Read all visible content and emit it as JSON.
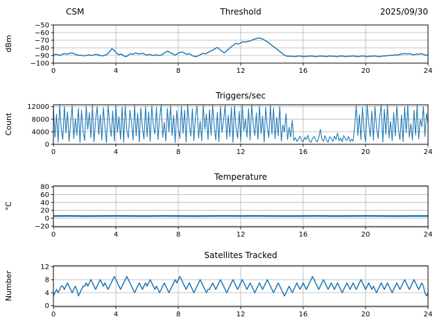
{
  "colors": {
    "line": "#1f77b4",
    "grid": "#b0b0b0",
    "axis": "#000000",
    "text": "#000000"
  },
  "chart_data": [
    {
      "name": "threshold",
      "type": "line",
      "title": "Threshold",
      "title_left": "CSM",
      "title_right": "2025/09/30",
      "ylabel": "dBm",
      "xlim": [
        0,
        24
      ],
      "ylim": [
        -100,
        -50
      ],
      "grid": true,
      "line_width": 1.5,
      "yticks": [
        {
          "v": -50,
          "label": "−50"
        },
        {
          "v": -60,
          "label": "−60"
        },
        {
          "v": -70,
          "label": "−70"
        },
        {
          "v": -80,
          "label": "−80"
        },
        {
          "v": -90,
          "label": "−90"
        },
        {
          "v": -100,
          "label": "−100"
        }
      ],
      "xticks": [
        {
          "v": 0,
          "label": "0"
        },
        {
          "v": 4,
          "label": "4"
        },
        {
          "v": 8,
          "label": "8"
        },
        {
          "v": 12,
          "label": "12"
        },
        {
          "v": 16,
          "label": "16"
        },
        {
          "v": 20,
          "label": "20"
        },
        {
          "v": 24,
          "label": "24"
        }
      ],
      "x_start": 0,
      "x_step": 0.15,
      "values": [
        -89.5,
        -88.5,
        -89,
        -90,
        -88,
        -87.5,
        -88.5,
        -87,
        -86.5,
        -88,
        -89,
        -90,
        -89.5,
        -90.5,
        -90,
        -89,
        -90,
        -89.5,
        -88.5,
        -89,
        -90,
        -90.5,
        -89.5,
        -88.5,
        -85,
        -81,
        -83.5,
        -87,
        -89,
        -88,
        -90.5,
        -91.5,
        -89.5,
        -87.5,
        -88.5,
        -86.5,
        -87.5,
        -88,
        -87,
        -88.5,
        -89.5,
        -88.5,
        -89.5,
        -90,
        -89,
        -90,
        -89.5,
        -87.5,
        -85.5,
        -84.5,
        -86.5,
        -88,
        -89.5,
        -87.5,
        -86,
        -85.5,
        -87,
        -88.5,
        -87.5,
        -89.5,
        -91,
        -91.5,
        -90,
        -88.5,
        -87,
        -88,
        -86,
        -84.5,
        -83,
        -81,
        -79.5,
        -82,
        -84.5,
        -86.5,
        -84,
        -81,
        -78.5,
        -76,
        -74,
        -75,
        -73.5,
        -72,
        -72.5,
        -71.5,
        -71,
        -69.5,
        -68.5,
        -67.5,
        -67,
        -68,
        -69.5,
        -71.5,
        -73.5,
        -76,
        -78.5,
        -80.5,
        -83,
        -85.5,
        -88,
        -90,
        -91,
        -91,
        -91,
        -91.5,
        -91,
        -90.5,
        -91,
        -91.5,
        -91,
        -91,
        -90.5,
        -91,
        -91.5,
        -91,
        -90.5,
        -91,
        -91,
        -91.5,
        -90.5,
        -91,
        -91,
        -91.5,
        -91,
        -90.5,
        -91,
        -91.5,
        -91,
        -91,
        -90.5,
        -91,
        -91.5,
        -91,
        -90.5,
        -91,
        -91.5,
        -91,
        -91,
        -90.5,
        -91,
        -91.5,
        -91,
        -90.5,
        -90.5,
        -90,
        -89.5,
        -90,
        -89,
        -89.5,
        -88.5,
        -88,
        -87.5,
        -88,
        -87.5,
        -88.5,
        -89,
        -88,
        -88.5,
        -87.5,
        -88.5,
        -89.5,
        -89.5
      ]
    },
    {
      "name": "triggers",
      "type": "line",
      "title": "Triggers/sec",
      "ylabel": "Count",
      "xlim": [
        0,
        24
      ],
      "ylim": [
        0,
        12600
      ],
      "grid": true,
      "line_width": 1.1,
      "yticks": [
        {
          "v": 12000,
          "label": "12000"
        },
        {
          "v": 8000,
          "label": "8000"
        },
        {
          "v": 4000,
          "label": "4000"
        },
        {
          "v": 0,
          "label": "0"
        }
      ],
      "xticks": [
        {
          "v": 0,
          "label": "0"
        },
        {
          "v": 4,
          "label": "4"
        },
        {
          "v": 8,
          "label": "8"
        },
        {
          "v": 12,
          "label": "12"
        },
        {
          "v": 16,
          "label": "16"
        },
        {
          "v": 20,
          "label": "20"
        },
        {
          "v": 24,
          "label": "24"
        }
      ],
      "x_start": 0,
      "x_step": 0.1,
      "values": [
        11800,
        2300,
        9600,
        700,
        12400,
        5100,
        1500,
        12100,
        3600,
        10400,
        900,
        6900,
        12300,
        1800,
        8200,
        2900,
        11500,
        600,
        10900,
        4200,
        1200,
        12200,
        4800,
        10100,
        2100,
        12450,
        800,
        7600,
        12000,
        3100,
        9400,
        1400,
        11700,
        5600,
        500,
        12300,
        6800,
        2500,
        10600,
        1100,
        12400,
        3900,
        8800,
        1600,
        11900,
        600,
        12200,
        4500,
        2000,
        10800,
        7200,
        1300,
        12350,
        2700,
        9900,
        800,
        11600,
        5300,
        1700,
        12100,
        2400,
        10300,
        900,
        12250,
        6100,
        3300,
        11800,
        1500,
        8500,
        12400,
        2200,
        7000,
        1000,
        11500,
        4000,
        12300,
        2800,
        9200,
        600,
        10700,
        5000,
        1900,
        12150,
        3500,
        10900,
        700,
        12400,
        6400,
        2600,
        11300,
        1200,
        8900,
        12200,
        2000,
        7400,
        1100,
        12350,
        4700,
        9700,
        1500,
        11000,
        2900,
        12400,
        5800,
        1400,
        10200,
        800,
        12100,
        3800,
        7800,
        12300,
        1700,
        9300,
        2500,
        11700,
        600,
        12200,
        5100,
        1900,
        10500,
        900,
        12350,
        4300,
        8100,
        2300,
        11400,
        1300,
        12450,
        6600,
        2800,
        10000,
        1600,
        12200,
        3400,
        9000,
        700,
        11800,
        5500,
        2100,
        12400,
        3200,
        11600,
        1800,
        8600,
        2700,
        12100,
        1000,
        6200,
        3900,
        9800,
        1500,
        5400,
        2300,
        7600,
        1200,
        2100,
        900,
        1700,
        2600,
        1200,
        800,
        2300,
        1500,
        2900,
        1100,
        600,
        1900,
        2500,
        1400,
        800,
        2200,
        4800,
        1600,
        1000,
        2700,
        1300,
        700,
        2400,
        1800,
        900,
        2600,
        1500,
        3600,
        1100,
        2000,
        800,
        2800,
        1700,
        1200,
        2500,
        900,
        1600,
        1000,
        6000,
        12300,
        2800,
        9500,
        1500,
        11800,
        4200,
        800,
        12400,
        6700,
        2400,
        10600,
        1300,
        12100,
        5200,
        1900,
        8800,
        12350,
        700,
        11200,
        3100,
        12450,
        2000,
        7300,
        1100,
        10100,
        2600,
        12200,
        4600,
        1500,
        9400,
        800,
        11900,
        3700,
        12300,
        2200,
        6500,
        1400,
        10800,
        2900,
        12400,
        1700,
        8000,
        5600,
        12100,
        2500,
        9900,
        6600
      ]
    },
    {
      "name": "temperature",
      "type": "line",
      "title": "Temperature",
      "ylabel": "°C",
      "xlim": [
        0,
        24
      ],
      "ylim": [
        -22,
        82
      ],
      "grid": true,
      "line_width": 2.5,
      "yticks": [
        {
          "v": 80,
          "label": "80"
        },
        {
          "v": 60,
          "label": "60"
        },
        {
          "v": 40,
          "label": "40"
        },
        {
          "v": 20,
          "label": "20"
        },
        {
          "v": 0,
          "label": "0"
        },
        {
          "v": -20,
          "label": "−20"
        }
      ],
      "xticks": [
        {
          "v": 0,
          "label": "0"
        },
        {
          "v": 4,
          "label": "4"
        },
        {
          "v": 8,
          "label": "8"
        },
        {
          "v": 12,
          "label": "12"
        },
        {
          "v": 16,
          "label": "16"
        },
        {
          "v": 20,
          "label": "20"
        },
        {
          "v": 24,
          "label": "24"
        }
      ],
      "x_start": 0,
      "x_step": 1,
      "values": [
        5.5,
        5.6,
        5.4,
        5.5,
        5.7,
        5.5,
        5.4,
        5.6,
        5.5,
        5.3,
        5.5,
        5.6,
        5.5,
        5.7,
        5.5,
        5.4,
        5.5,
        5.6,
        5.4,
        5.5,
        5.6,
        5.5,
        5.4,
        5.5,
        5.5
      ]
    },
    {
      "name": "satellites",
      "type": "line",
      "title": "Satellites Tracked",
      "ylabel": "Number",
      "xlim": [
        0,
        24
      ],
      "ylim": [
        -0.3,
        12.3
      ],
      "grid": true,
      "line_width": 1.5,
      "yticks": [
        {
          "v": 12,
          "label": "12"
        },
        {
          "v": 8,
          "label": "8"
        },
        {
          "v": 4,
          "label": "4"
        },
        {
          "v": 0,
          "label": "0"
        }
      ],
      "xticks": [
        {
          "v": 0,
          "label": "0"
        },
        {
          "v": 4,
          "label": "4"
        },
        {
          "v": 8,
          "label": "8"
        },
        {
          "v": 12,
          "label": "12"
        },
        {
          "v": 16,
          "label": "16"
        },
        {
          "v": 20,
          "label": "20"
        },
        {
          "v": 24,
          "label": "24"
        }
      ],
      "x_start": 0,
      "x_step": 0.1,
      "values": [
        3,
        4,
        5,
        4,
        5,
        6,
        6,
        5,
        6,
        7,
        6,
        5,
        4,
        5,
        6,
        5,
        3,
        4,
        5,
        6,
        6,
        7,
        6,
        7,
        8,
        7,
        6,
        5,
        6,
        7,
        8,
        7,
        6,
        7,
        6,
        5,
        6,
        7,
        8,
        9,
        8,
        7,
        6,
        5,
        6,
        7,
        8,
        9,
        8,
        7,
        6,
        5,
        4,
        5,
        6,
        7,
        6,
        5,
        6,
        7,
        6,
        7,
        8,
        7,
        6,
        5,
        6,
        5,
        4,
        5,
        6,
        7,
        6,
        5,
        4,
        5,
        6,
        7,
        8,
        7,
        8,
        9,
        8,
        7,
        6,
        5,
        6,
        7,
        6,
        5,
        4,
        5,
        6,
        7,
        8,
        7,
        6,
        5,
        4,
        5,
        5,
        6,
        7,
        6,
        5,
        6,
        7,
        8,
        7,
        6,
        5,
        4,
        5,
        6,
        7,
        8,
        7,
        6,
        5,
        6,
        7,
        8,
        7,
        6,
        5,
        6,
        7,
        6,
        5,
        4,
        5,
        6,
        7,
        6,
        5,
        6,
        7,
        8,
        7,
        6,
        5,
        4,
        5,
        6,
        7,
        6,
        5,
        4,
        3,
        4,
        5,
        6,
        5,
        4,
        5,
        6,
        7,
        6,
        5,
        6,
        7,
        6,
        5,
        6,
        7,
        8,
        9,
        8,
        7,
        6,
        5,
        6,
        7,
        8,
        7,
        6,
        5,
        6,
        7,
        6,
        5,
        6,
        7,
        6,
        5,
        4,
        5,
        6,
        7,
        6,
        5,
        6,
        7,
        6,
        5,
        6,
        7,
        8,
        7,
        6,
        5,
        6,
        7,
        6,
        5,
        6,
        5,
        4,
        5,
        6,
        7,
        6,
        5,
        6,
        7,
        6,
        5,
        4,
        5,
        6,
        7,
        6,
        5,
        6,
        7,
        8,
        7,
        6,
        5,
        6,
        7,
        8,
        7,
        6,
        5,
        6,
        7,
        6,
        4,
        3,
        4
      ]
    }
  ]
}
